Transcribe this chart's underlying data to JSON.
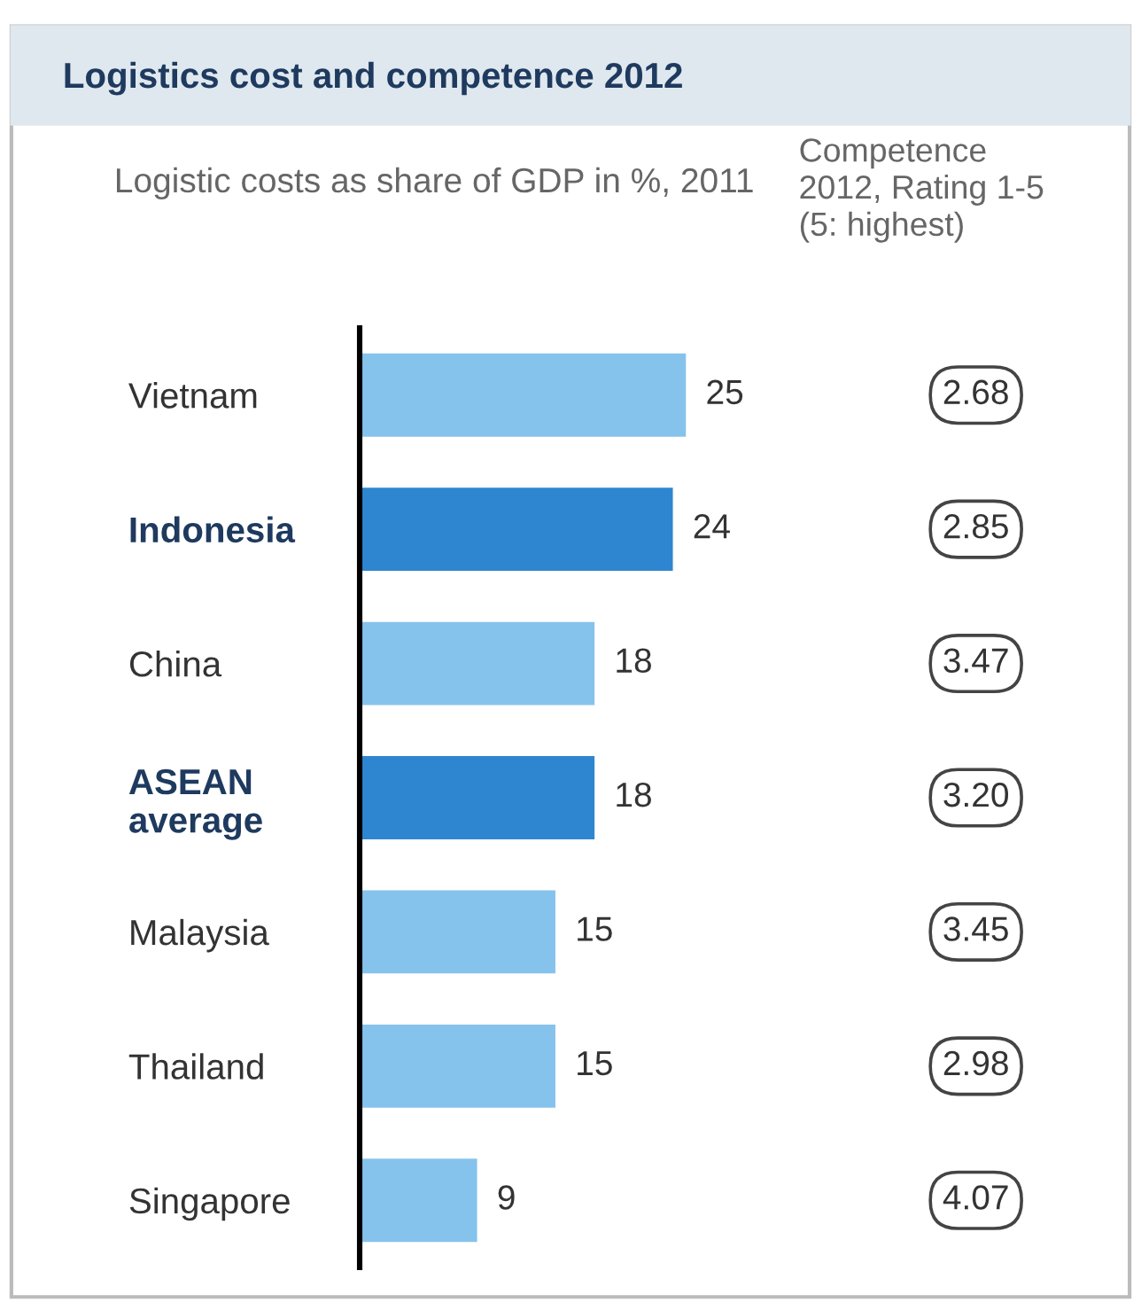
{
  "chart_data": [
    {
      "type": "bar",
      "orientation": "horizontal",
      "title": "Logistics cost and competence 2012",
      "subtitle": "Logistic costs as share of GDP in %, 2011",
      "categories": [
        "Vietnam",
        "Indonesia",
        "China",
        "ASEAN\naverage",
        "Malaysia",
        "Thailand",
        "Singapore"
      ],
      "values": [
        25,
        24,
        18,
        18,
        15,
        15,
        9
      ],
      "colors": [
        "#86c3ec",
        "#2f86d0",
        "#86c3ec",
        "#2f86d0",
        "#86c3ec",
        "#86c3ec",
        "#86c3ec"
      ],
      "data_labels": true,
      "grid": false,
      "legend": false
    },
    {
      "type": "other",
      "title": "Competence\n2012, Rating 1-5\n(5: highest)",
      "annotations": [
        "2.68",
        "2.85",
        "3.47",
        "3.20",
        "3.45",
        "2.98",
        "4.07"
      ]
    }
  ]
}
